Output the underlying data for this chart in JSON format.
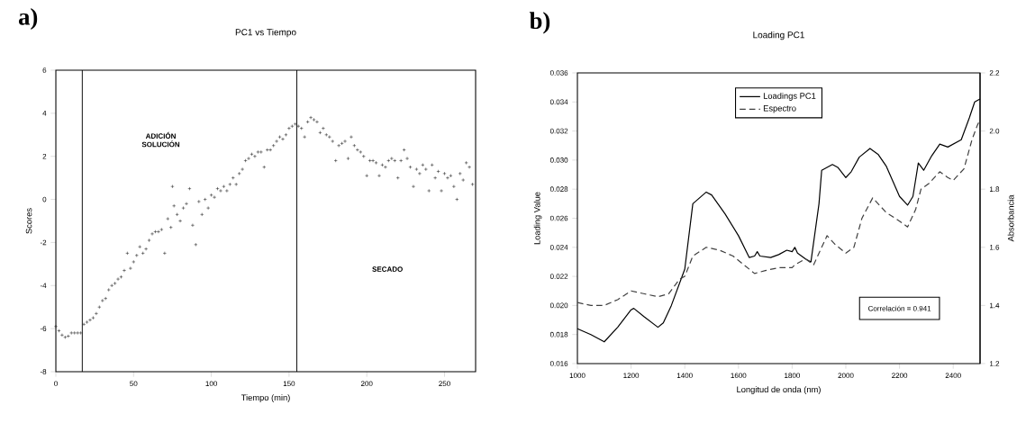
{
  "chart_data": [
    {
      "type": "scatter",
      "title": "PC1 vs Tiempo",
      "xlabel": "Tiempo (min)",
      "ylabel": "Scores",
      "marker": "cross",
      "color": "#202020",
      "xlim": [
        0,
        270
      ],
      "ylim": [
        -8,
        6
      ],
      "xticks": [
        0,
        50,
        100,
        150,
        200,
        250
      ],
      "yticks": [
        -8,
        -6,
        -4,
        -2,
        0,
        2,
        4,
        6
      ],
      "x": [
        0,
        2,
        4,
        6,
        8,
        10,
        12,
        14,
        16,
        18,
        20,
        22,
        24,
        26,
        28,
        30,
        32,
        34,
        36,
        38,
        40,
        42,
        44,
        46,
        48,
        50,
        52,
        54,
        56,
        58,
        60,
        62,
        64,
        66,
        68,
        70,
        72,
        74,
        75,
        76,
        78,
        80,
        82,
        84,
        86,
        88,
        90,
        92,
        94,
        96,
        98,
        100,
        102,
        104,
        106,
        108,
        110,
        112,
        114,
        116,
        118,
        120,
        122,
        124,
        126,
        128,
        130,
        132,
        134,
        136,
        138,
        140,
        142,
        144,
        146,
        148,
        150,
        152,
        154,
        156,
        158,
        160,
        162,
        164,
        166,
        168,
        170,
        172,
        174,
        176,
        178,
        180,
        182,
        184,
        186,
        188,
        190,
        192,
        194,
        196,
        198,
        200,
        202,
        204,
        206,
        208,
        210,
        212,
        214,
        216,
        218,
        220,
        222,
        224,
        226,
        228,
        230,
        232,
        234,
        236,
        238,
        240,
        242,
        244,
        246,
        248,
        250,
        252,
        254,
        256,
        258,
        260,
        262,
        264,
        266,
        268
      ],
      "values": [
        -5.9,
        -6.1,
        -6.3,
        -6.4,
        -6.35,
        -6.2,
        -6.2,
        -6.2,
        -6.2,
        -5.8,
        -5.7,
        -5.6,
        -5.5,
        -5.3,
        -5.0,
        -4.7,
        -4.6,
        -4.2,
        -4.0,
        -3.9,
        -3.7,
        -3.6,
        -3.3,
        -2.5,
        -3.2,
        -2.9,
        -2.6,
        -2.2,
        -2.5,
        -2.3,
        -1.9,
        -1.6,
        -1.5,
        -1.5,
        -1.4,
        -2.5,
        -0.9,
        -1.3,
        0.6,
        -0.3,
        -0.7,
        -1.0,
        -0.4,
        -0.2,
        0.5,
        -1.2,
        -2.1,
        -0.1,
        -0.7,
        0.0,
        -0.4,
        0.2,
        0.1,
        0.5,
        0.4,
        0.6,
        0.4,
        0.7,
        1.0,
        0.7,
        1.2,
        1.4,
        1.8,
        1.9,
        2.1,
        2.0,
        2.2,
        2.2,
        1.5,
        2.3,
        2.3,
        2.5,
        2.7,
        2.9,
        2.8,
        3.0,
        3.3,
        3.4,
        3.5,
        3.4,
        3.3,
        2.9,
        3.6,
        3.8,
        3.7,
        3.6,
        3.1,
        3.3,
        3.0,
        2.9,
        2.7,
        1.8,
        2.5,
        2.6,
        2.7,
        1.9,
        2.9,
        2.5,
        2.3,
        2.2,
        2.0,
        1.1,
        1.8,
        1.8,
        1.7,
        1.1,
        1.6,
        1.5,
        1.8,
        1.9,
        1.8,
        1.0,
        1.8,
        2.3,
        1.9,
        1.5,
        0.6,
        1.4,
        1.2,
        1.6,
        1.4,
        0.4,
        1.6,
        1.0,
        1.3,
        0.4,
        1.2,
        1.0,
        1.1,
        0.6,
        0.0,
        1.2,
        0.9,
        1.7,
        1.5,
        0.7
      ],
      "ref_lines": [
        {
          "axis": "x",
          "value": 17,
          "color": "#000000"
        },
        {
          "axis": "x",
          "value": 155,
          "color": "#000000"
        }
      ],
      "annotations": [
        "a)",
        "ADICIÓN SOLUCIÓN",
        "SECADO"
      ]
    },
    {
      "type": "line",
      "title": "Loading PC1",
      "xlabel": "Longitud de onda (nm)",
      "ylabel": "Loading Value",
      "y2label": "Absorbancia",
      "legend": "top",
      "xlim": [
        1000,
        2500
      ],
      "ylim": [
        0.016,
        0.036
      ],
      "y2lim": [
        1.2,
        2.2
      ],
      "xticks": [
        1000,
        1200,
        1400,
        1600,
        1800,
        2000,
        2200,
        2400
      ],
      "yticks": [
        0.016,
        0.018,
        {
          "value": 0.02,
          "label": "0.020"
        },
        0.022,
        0.024,
        0.026,
        0.028,
        {
          "value": 0.03,
          "label": "0.030"
        },
        0.032,
        0.034,
        0.036
      ],
      "y2ticks": [
        1.2,
        1.4,
        1.6,
        1.8,
        {
          "value": 2.0,
          "label": "2.0"
        },
        2.2
      ],
      "series": [
        {
          "name": "Loadings PC1",
          "color": "#000000",
          "line_style": "solid",
          "x": [
            1000,
            1050,
            1100,
            1150,
            1200,
            1210,
            1250,
            1300,
            1320,
            1350,
            1400,
            1430,
            1480,
            1500,
            1550,
            1600,
            1640,
            1660,
            1670,
            1680,
            1720,
            1750,
            1780,
            1800,
            1810,
            1820,
            1850,
            1870,
            1900,
            1910,
            1950,
            1970,
            2000,
            2020,
            2050,
            2090,
            2120,
            2150,
            2200,
            2230,
            2250,
            2270,
            2290,
            2320,
            2350,
            2380,
            2400,
            2430,
            2460,
            2480,
            2500
          ],
          "values": [
            0.0184,
            0.018,
            0.0175,
            0.0185,
            0.0197,
            0.0198,
            0.0192,
            0.0185,
            0.0188,
            0.02,
            0.0225,
            0.027,
            0.0278,
            0.0276,
            0.0263,
            0.0248,
            0.0233,
            0.0234,
            0.0237,
            0.0234,
            0.0233,
            0.0235,
            0.0238,
            0.0237,
            0.024,
            0.0236,
            0.0232,
            0.023,
            0.027,
            0.0293,
            0.0297,
            0.0295,
            0.0288,
            0.0292,
            0.0302,
            0.0308,
            0.0304,
            0.0296,
            0.0275,
            0.0269,
            0.0275,
            0.0298,
            0.0293,
            0.0303,
            0.0311,
            0.0309,
            0.0311,
            0.0314,
            0.0329,
            0.034,
            0.0342
          ]
        },
        {
          "name": "Espectro",
          "color": "#404040",
          "line_style": "dashed",
          "axis": "y2",
          "x": [
            1000,
            1050,
            1100,
            1150,
            1200,
            1250,
            1300,
            1340,
            1380,
            1400,
            1430,
            1480,
            1530,
            1580,
            1620,
            1660,
            1700,
            1750,
            1800,
            1810,
            1850,
            1880,
            1900,
            1930,
            1960,
            2000,
            2030,
            2060,
            2100,
            2150,
            2200,
            2230,
            2260,
            2280,
            2310,
            2350,
            2380,
            2400,
            2440,
            2470,
            2490,
            2500
          ],
          "values": [
            1.41,
            1.4,
            1.4,
            1.42,
            1.45,
            1.44,
            1.43,
            1.44,
            1.49,
            1.5,
            1.57,
            1.6,
            1.59,
            1.57,
            1.54,
            1.51,
            1.52,
            1.53,
            1.53,
            1.54,
            1.56,
            1.54,
            1.58,
            1.64,
            1.61,
            1.58,
            1.6,
            1.7,
            1.77,
            1.72,
            1.69,
            1.67,
            1.73,
            1.8,
            1.82,
            1.86,
            1.84,
            1.83,
            1.87,
            1.97,
            2.02,
            2.04
          ]
        }
      ],
      "annotations": [
        "b)",
        "Correlación = 0.941"
      ]
    }
  ]
}
